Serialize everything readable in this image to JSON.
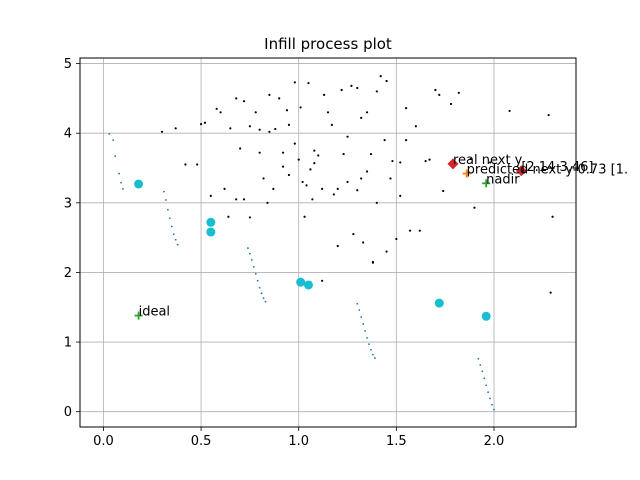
{
  "chart_data": {
    "type": "scatter",
    "title": "Infill process plot",
    "xlabel": "",
    "ylabel": "",
    "xlim": [
      -0.12,
      2.42
    ],
    "ylim": [
      -0.22,
      5.08
    ],
    "grid": true,
    "xticks": [
      0.0,
      0.5,
      1.0,
      1.5,
      2.0
    ],
    "xtick_labels": [
      "0.0",
      "0.5",
      "1.0",
      "1.5",
      "2.0"
    ],
    "yticks": [
      0,
      1,
      2,
      3,
      4,
      5
    ],
    "ytick_labels": [
      "0",
      "1",
      "2",
      "3",
      "4",
      "5"
    ],
    "colors": {
      "grid": "#b0b0b0",
      "front_points": "#1f77b4",
      "samples": "#000000",
      "infill": "#17becf",
      "real_next": "#d62728",
      "predicted_next": "#ff7f0e",
      "ideal_nadir": "#2ca02c"
    },
    "series": [
      {
        "marker": "small-dot",
        "segments": [
          [
            [
              0.03,
              3.99
            ],
            [
              0.05,
              3.9
            ],
            [
              0.06,
              3.67
            ],
            [
              0.08,
              3.42
            ],
            [
              0.09,
              3.29
            ],
            [
              0.1,
              3.2
            ]
          ],
          [
            [
              0.31,
              3.16
            ],
            [
              0.32,
              3.04
            ],
            [
              0.33,
              2.9
            ],
            [
              0.34,
              2.78
            ],
            [
              0.35,
              2.66
            ],
            [
              0.36,
              2.55
            ],
            [
              0.37,
              2.47
            ],
            [
              0.38,
              2.4
            ]
          ],
          [
            [
              0.74,
              2.35
            ],
            [
              0.75,
              2.27
            ],
            [
              0.76,
              2.18
            ],
            [
              0.77,
              2.08
            ],
            [
              0.78,
              1.98
            ],
            [
              0.79,
              1.88
            ],
            [
              0.8,
              1.78
            ],
            [
              0.81,
              1.7
            ],
            [
              0.82,
              1.63
            ],
            [
              0.83,
              1.58
            ]
          ],
          [
            [
              1.3,
              1.55
            ],
            [
              1.31,
              1.46
            ],
            [
              1.32,
              1.36
            ],
            [
              1.33,
              1.26
            ],
            [
              1.34,
              1.16
            ],
            [
              1.35,
              1.06
            ],
            [
              1.36,
              0.97
            ],
            [
              1.37,
              0.89
            ],
            [
              1.38,
              0.82
            ],
            [
              1.39,
              0.77
            ]
          ],
          [
            [
              1.92,
              0.76
            ],
            [
              1.93,
              0.67
            ],
            [
              1.94,
              0.58
            ],
            [
              1.95,
              0.48
            ],
            [
              1.96,
              0.38
            ],
            [
              1.97,
              0.28
            ],
            [
              1.98,
              0.19
            ],
            [
              1.99,
              0.1
            ],
            [
              2.0,
              0.03
            ]
          ]
        ]
      },
      {
        "marker": "black-dot",
        "points": [
          [
            0.3,
            4.02
          ],
          [
            0.37,
            4.07
          ],
          [
            0.42,
            3.55
          ],
          [
            0.48,
            3.55
          ],
          [
            0.5,
            4.13
          ],
          [
            0.52,
            4.15
          ],
          [
            0.58,
            4.35
          ],
          [
            0.6,
            4.3
          ],
          [
            0.62,
            3.2
          ],
          [
            0.65,
            4.07
          ],
          [
            0.68,
            4.5
          ],
          [
            0.72,
            4.46
          ],
          [
            0.7,
            3.78
          ],
          [
            0.72,
            3.05
          ],
          [
            0.75,
            2.79
          ],
          [
            0.75,
            4.1
          ],
          [
            0.78,
            4.3
          ],
          [
            0.8,
            4.05
          ],
          [
            0.8,
            3.72
          ],
          [
            0.82,
            3.35
          ],
          [
            0.84,
            3.0
          ],
          [
            0.85,
            4.02
          ],
          [
            0.87,
            3.2
          ],
          [
            0.88,
            4.06
          ],
          [
            0.9,
            4.5
          ],
          [
            0.92,
            3.52
          ],
          [
            0.94,
            4.33
          ],
          [
            0.95,
            4.12
          ],
          [
            0.98,
            3.85
          ],
          [
            1.0,
            3.62
          ],
          [
            1.01,
            4.37
          ],
          [
            1.03,
            2.8
          ],
          [
            1.04,
            3.25
          ],
          [
            1.05,
            4.72
          ],
          [
            1.06,
            3.48
          ],
          [
            1.07,
            3.05
          ],
          [
            1.1,
            3.68
          ],
          [
            1.12,
            3.2
          ],
          [
            1.13,
            4.55
          ],
          [
            1.15,
            4.3
          ],
          [
            1.17,
            4.12
          ],
          [
            1.18,
            3.12
          ],
          [
            1.2,
            2.38
          ],
          [
            1.22,
            4.62
          ],
          [
            1.23,
            3.7
          ],
          [
            1.25,
            3.3
          ],
          [
            1.27,
            4.68
          ],
          [
            1.28,
            2.55
          ],
          [
            1.3,
            3.18
          ],
          [
            1.32,
            4.22
          ],
          [
            1.33,
            2.43
          ],
          [
            1.35,
            4.3
          ],
          [
            1.37,
            3.7
          ],
          [
            1.38,
            2.15
          ],
          [
            1.4,
            4.6
          ],
          [
            1.42,
            4.82
          ],
          [
            1.44,
            3.9
          ],
          [
            1.45,
            2.3
          ],
          [
            1.47,
            3.35
          ],
          [
            1.5,
            2.48
          ],
          [
            1.52,
            3.58
          ],
          [
            1.55,
            4.36
          ],
          [
            1.57,
            2.6
          ],
          [
            1.6,
            4.1
          ],
          [
            1.62,
            2.6
          ],
          [
            1.67,
            3.62
          ],
          [
            1.7,
            4.62
          ],
          [
            1.74,
            3.17
          ],
          [
            1.78,
            4.42
          ],
          [
            1.82,
            4.58
          ],
          [
            1.88,
            3.63
          ],
          [
            1.9,
            2.93
          ],
          [
            1.98,
            3.58
          ],
          [
            2.08,
            4.32
          ],
          [
            2.3,
            2.8
          ],
          [
            2.28,
            4.26
          ],
          [
            2.29,
            1.71
          ],
          [
            1.12,
            1.88
          ],
          [
            1.32,
            3.35
          ],
          [
            0.98,
            4.73
          ],
          [
            1.38,
            2.14
          ],
          [
            0.64,
            2.8
          ],
          [
            0.55,
            3.1
          ],
          [
            0.92,
            3.72
          ],
          [
            1.08,
            3.57
          ],
          [
            1.2,
            3.2
          ],
          [
            1.3,
            4.65
          ],
          [
            1.35,
            3.45
          ],
          [
            1.4,
            3.0
          ],
          [
            1.45,
            4.75
          ],
          [
            1.55,
            3.9
          ],
          [
            1.65,
            3.6
          ],
          [
            1.72,
            4.55
          ],
          [
            0.68,
            3.05
          ],
          [
            0.85,
            4.55
          ],
          [
            0.95,
            3.4
          ],
          [
            1.02,
            3.3
          ],
          [
            1.08,
            3.75
          ],
          [
            1.25,
            3.95
          ],
          [
            1.48,
            3.6
          ],
          [
            1.52,
            3.1
          ]
        ]
      },
      {
        "marker": "cyan-circle",
        "points": [
          [
            0.18,
            3.27
          ],
          [
            0.55,
            2.72
          ],
          [
            0.55,
            2.58
          ],
          [
            1.01,
            1.86
          ],
          [
            1.05,
            1.82
          ],
          [
            1.72,
            1.56
          ],
          [
            1.96,
            1.37
          ]
        ]
      },
      {
        "marker": "green-plus",
        "points": [
          [
            0.18,
            1.38
          ],
          [
            1.96,
            3.28
          ]
        ]
      },
      {
        "marker": "orange-plus",
        "points": [
          [
            1.86,
            3.42
          ]
        ]
      },
      {
        "marker": "red-diamond",
        "points": [
          [
            1.79,
            3.56
          ],
          [
            2.14,
            3.46
          ]
        ]
      }
    ],
    "annotations": [
      {
        "text": "ideal",
        "x": 0.18,
        "y": 1.38
      },
      {
        "text": "nadir",
        "x": 1.96,
        "y": 3.28
      },
      {
        "text": "real next y",
        "x": 1.79,
        "y": 3.56
      },
      {
        "text": "[2.14 3.46]",
        "x": 2.14,
        "y": 3.46
      },
      {
        "text": "predicted next y-0.73 [1.",
        "x": 1.86,
        "y": 3.42
      }
    ]
  }
}
